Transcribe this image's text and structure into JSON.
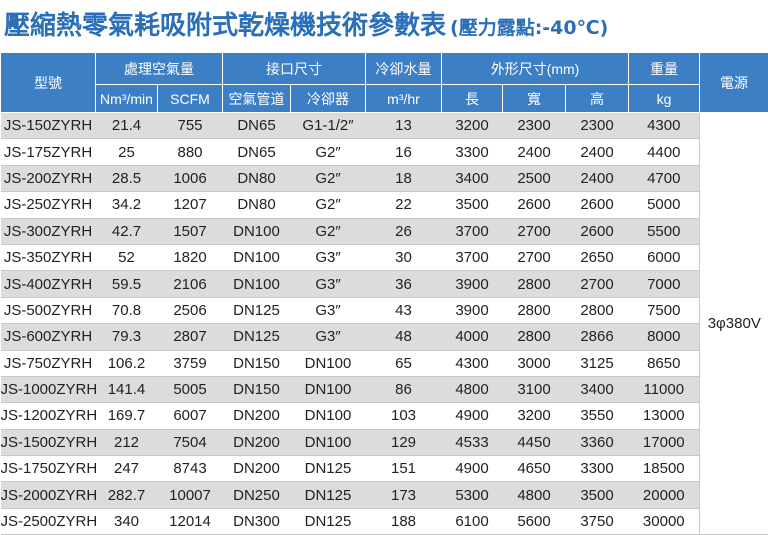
{
  "header": {
    "title": "壓縮熱零氣耗吸附式乾燥機技術參數表",
    "subtitle": "(壓力露點:-40℃)"
  },
  "table": {
    "head1": [
      "型號",
      "處理空氣量",
      "接口尺寸",
      "冷卻水量",
      "外形尺寸(mm)",
      "重量",
      "電源"
    ],
    "head2": [
      "Nm³/min",
      "SCFM",
      "空氣管道",
      "冷卻器",
      "m³/hr",
      "長",
      "寬",
      "高",
      "kg"
    ],
    "power": "3φ380V",
    "rows": [
      [
        "JS-150ZYRH",
        "21.4",
        "755",
        "DN65",
        "G1-1/2″",
        "13",
        "3200",
        "2300",
        "2300",
        "4300"
      ],
      [
        "JS-175ZYRH",
        "25",
        "880",
        "DN65",
        "G2″",
        "16",
        "3300",
        "2400",
        "2400",
        "4400"
      ],
      [
        "JS-200ZYRH",
        "28.5",
        "1006",
        "DN80",
        "G2″",
        "18",
        "3400",
        "2500",
        "2400",
        "4700"
      ],
      [
        "JS-250ZYRH",
        "34.2",
        "1207",
        "DN80",
        "G2″",
        "22",
        "3500",
        "2600",
        "2600",
        "5000"
      ],
      [
        "JS-300ZYRH",
        "42.7",
        "1507",
        "DN100",
        "G2″",
        "26",
        "3700",
        "2700",
        "2600",
        "5500"
      ],
      [
        "JS-350ZYRH",
        "52",
        "1820",
        "DN100",
        "G3″",
        "30",
        "3700",
        "2700",
        "2650",
        "6000"
      ],
      [
        "JS-400ZYRH",
        "59.5",
        "2106",
        "DN100",
        "G3″",
        "36",
        "3900",
        "2800",
        "2700",
        "7000"
      ],
      [
        "JS-500ZYRH",
        "70.8",
        "2506",
        "DN125",
        "G3″",
        "43",
        "3900",
        "2800",
        "2800",
        "7500"
      ],
      [
        "JS-600ZYRH",
        "79.3",
        "2807",
        "DN125",
        "G3″",
        "48",
        "4000",
        "2800",
        "2866",
        "8000"
      ],
      [
        "JS-750ZYRH",
        "106.2",
        "3759",
        "DN150",
        "DN100",
        "65",
        "4300",
        "3000",
        "3125",
        "8650"
      ],
      [
        "JS-1000ZYRH",
        "141.4",
        "5005",
        "DN150",
        "DN100",
        "86",
        "4800",
        "3100",
        "3400",
        "11000"
      ],
      [
        "JS-1200ZYRH",
        "169.7",
        "6007",
        "DN200",
        "DN100",
        "103",
        "4900",
        "3200",
        "3550",
        "13000"
      ],
      [
        "JS-1500ZYRH",
        "212",
        "7504",
        "DN200",
        "DN100",
        "129",
        "4533",
        "4450",
        "3360",
        "17000"
      ],
      [
        "JS-1750ZYRH",
        "247",
        "8743",
        "DN200",
        "DN125",
        "151",
        "4900",
        "4650",
        "3300",
        "18500"
      ],
      [
        "JS-2000ZYRH",
        "282.7",
        "10007",
        "DN250",
        "DN125",
        "173",
        "5300",
        "4800",
        "3500",
        "20000"
      ],
      [
        "JS-2500ZYRH",
        "340",
        "12014",
        "DN300",
        "DN125",
        "188",
        "6100",
        "5600",
        "3750",
        "30000"
      ]
    ]
  }
}
